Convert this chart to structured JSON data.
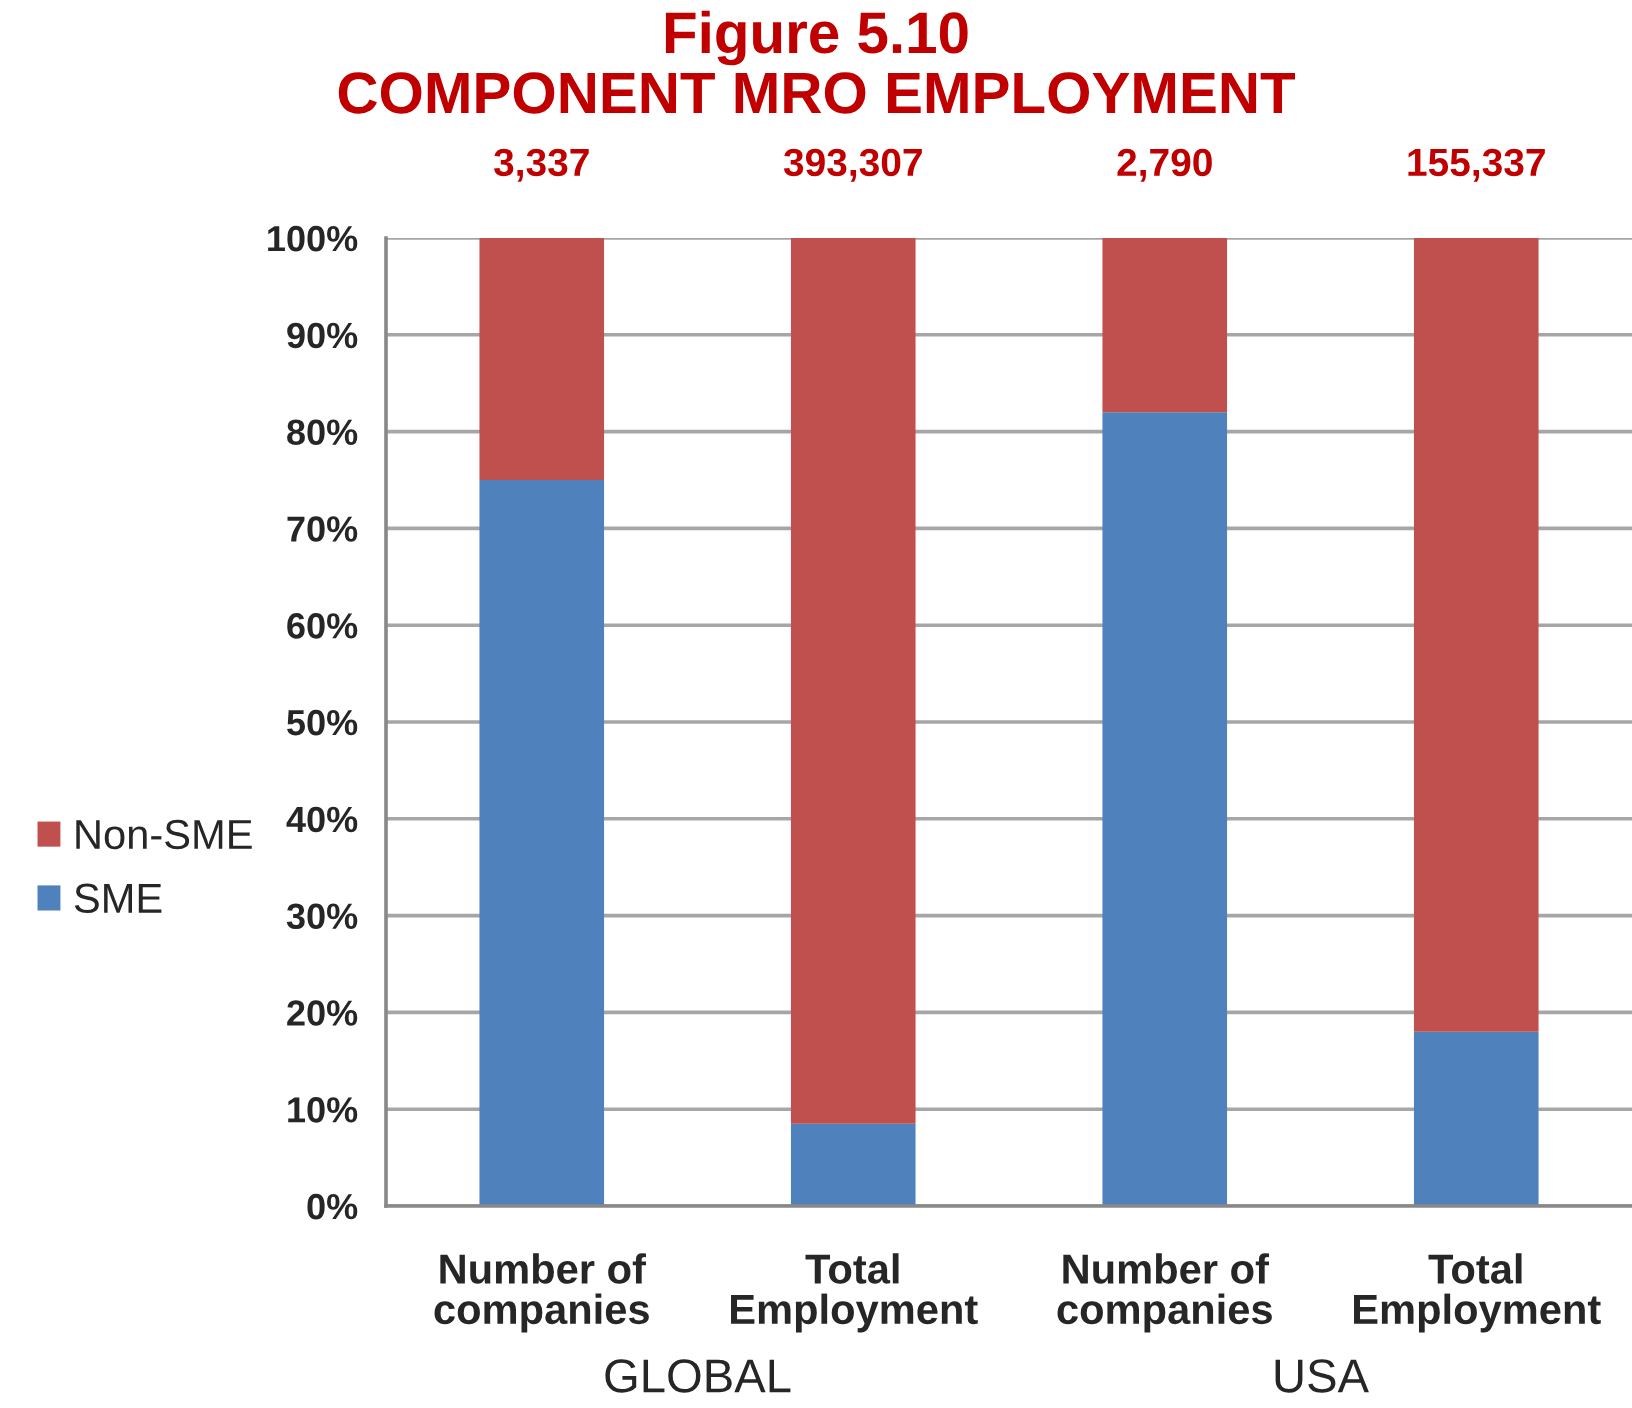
{
  "chart_data": {
    "type": "bar",
    "title": "Figure 5.10",
    "subtitle": "COMPONENT MRO EMPLOYMENT",
    "categories": [
      "Number of\ncompanies",
      "Total\nEmployment",
      "Number of\ncompanies",
      "Total\nEmployment"
    ],
    "series": [
      {
        "name": "SME",
        "color": "#4f81bd",
        "values": [
          75,
          8.5,
          82,
          18
        ]
      },
      {
        "name": "Non-SME",
        "color": "#c0504d",
        "values": [
          25,
          91.5,
          18,
          82
        ]
      }
    ],
    "stacked": true,
    "ylim": [
      0,
      100
    ],
    "yticks": [
      {
        "value": 0,
        "label": "0%"
      },
      {
        "value": 10,
        "label": "10%"
      },
      {
        "value": 20,
        "label": "20%"
      },
      {
        "value": 30,
        "label": "30%"
      },
      {
        "value": 40,
        "label": "40%"
      },
      {
        "value": 50,
        "label": "50%"
      },
      {
        "value": 60,
        "label": "60%"
      },
      {
        "value": 70,
        "label": "70%"
      },
      {
        "value": 80,
        "label": "80%"
      },
      {
        "value": 90,
        "label": "90%"
      },
      {
        "value": 100,
        "label": "100%"
      }
    ],
    "grid": "y",
    "legend": "left",
    "annotations": [
      "3,337",
      "393,307",
      "2,790",
      "155,337",
      "GLOBAL",
      "USA"
    ]
  }
}
